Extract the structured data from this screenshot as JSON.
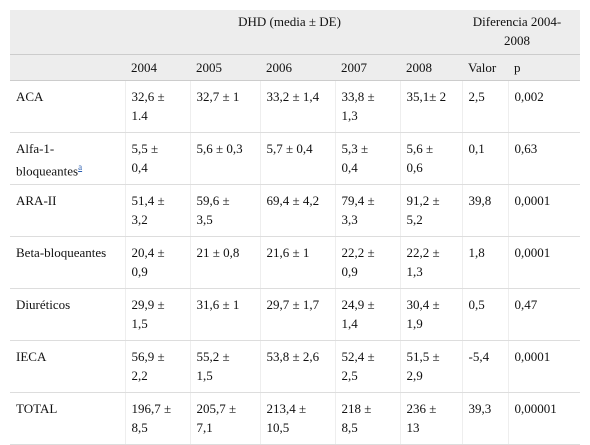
{
  "table": {
    "header": {
      "group1": "DHD (media ± DE)",
      "group2": "Diferencia 2004-2008",
      "columns": [
        "2004",
        "2005",
        "2006",
        "2007",
        "2008",
        "Valor",
        "p"
      ]
    },
    "rows": [
      {
        "label": "ACA",
        "cells": [
          "32,6 ± 1.4",
          "32,7 ± 1",
          "33,2 ± 1,4",
          "33,8 ± 1,3",
          "35,1± 2",
          "2,5",
          "0,002"
        ]
      },
      {
        "label": "Alfa-1-bloqueantes",
        "footnote": "a",
        "cells": [
          "5,5 ± 0,4",
          "5,6 ± 0,3",
          "5,7 ± 0,4",
          "5,3 ± 0,4",
          "5,6 ± 0,6",
          "0,1",
          "0,63"
        ]
      },
      {
        "label": "ARA-II",
        "cells": [
          "51,4 ± 3,2",
          "59,6 ± 3,5",
          "69,4 ± 4,2",
          "79,4 ± 3,3",
          "91,2 ± 5,2",
          "39,8",
          "0,0001"
        ]
      },
      {
        "label": "Beta-bloqueantes",
        "cells": [
          "20,4 ± 0,9",
          "21 ± 0,8",
          "21,6 ± 1",
          "22,2 ± 0,9",
          "22,2 ± 1,3",
          "1,8",
          "0,0001"
        ]
      },
      {
        "label": "Diuréticos",
        "cells": [
          "29,9 ± 1,5",
          "31,6 ± 1",
          "29,7 ± 1,7",
          "24,9 ± 1,4",
          "30,4 ± 1,9",
          "0,5",
          "0,47"
        ]
      },
      {
        "label": "IECA",
        "cells": [
          "56,9 ± 2,2",
          "55,2 ± 1,5",
          "53,8 ± 2,6",
          "52,4 ± 2,5",
          "51,5 ± 2,9",
          "-5,4",
          "0,0001"
        ]
      },
      {
        "label": "TOTAL",
        "cells": [
          "196,7 ± 8,5",
          "205,7 ± 7,1",
          "213,4 ± 10,5",
          "218 ± 8,5",
          "236 ± 13",
          "39,3",
          "0,00001"
        ]
      }
    ]
  }
}
